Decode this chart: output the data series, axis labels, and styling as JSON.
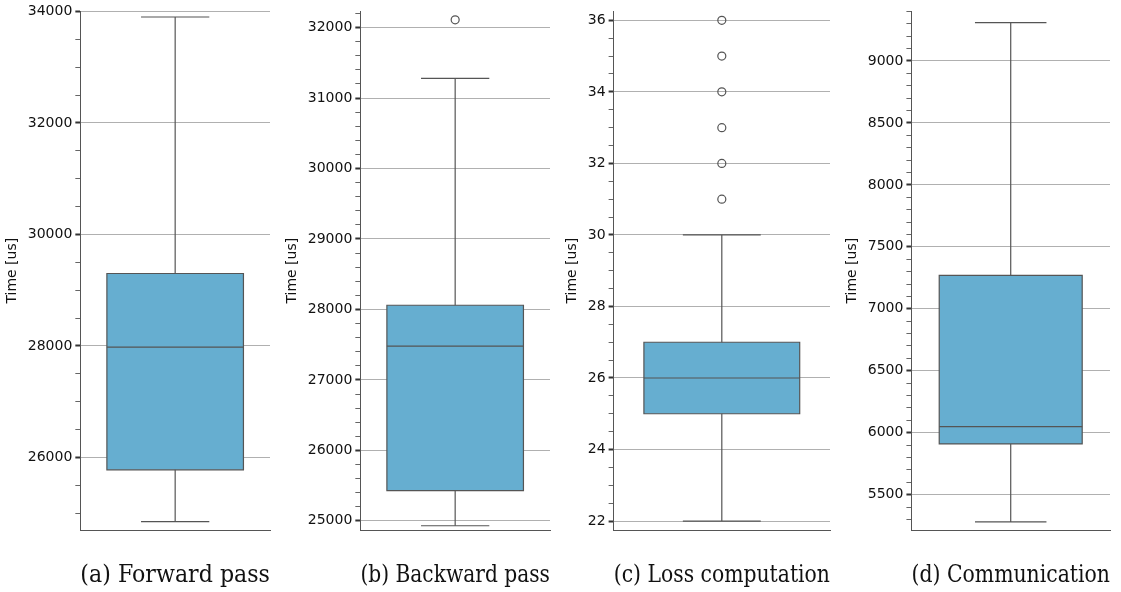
{
  "chart_data": [
    {
      "type": "box",
      "xlabel": "(a) Forward pass",
      "ylabel": "Time [us]",
      "categories": [
        null
      ],
      "color": "#66aed0",
      "grid": "y",
      "boxes": [
        {
          "low": 24850,
          "q1": 25780,
          "median": 27980,
          "q3": 29300,
          "high": 33900
        }
      ],
      "ylim": [
        24700,
        34000
      ],
      "yticks": [
        {
          "value": 25000,
          "label": null
        },
        {
          "value": 25500,
          "label": null
        },
        26000,
        {
          "value": 26500,
          "label": null
        },
        {
          "value": 27000,
          "label": null
        },
        {
          "value": 27500,
          "label": null
        },
        28000,
        {
          "value": 28500,
          "label": null
        },
        {
          "value": 29000,
          "label": null
        },
        {
          "value": 29500,
          "label": null
        },
        30000,
        {
          "value": 30500,
          "label": null
        },
        {
          "value": 31000,
          "label": null
        },
        {
          "value": 31500,
          "label": null
        },
        32000,
        {
          "value": 32500,
          "label": null
        },
        {
          "value": 33000,
          "label": null
        },
        {
          "value": 33500,
          "label": null
        },
        34000
      ]
    },
    {
      "type": "box",
      "xlabel": "(b) Backward pass",
      "ylabel": "Time [us]",
      "categories": [
        null
      ],
      "color": "#66aed0",
      "grid": "y",
      "boxes": [
        {
          "low": 24930,
          "q1": 25430,
          "median": 27480,
          "q3": 28060,
          "high": 31280,
          "outliers": [
            32110
          ]
        }
      ],
      "ylim": [
        24870,
        32230
      ],
      "yticks": [
        25000,
        {
          "value": 25200,
          "label": null
        },
        {
          "value": 25400,
          "label": null
        },
        {
          "value": 25600,
          "label": null
        },
        {
          "value": 25800,
          "label": null
        },
        26000,
        {
          "value": 26200,
          "label": null
        },
        {
          "value": 26400,
          "label": null
        },
        {
          "value": 26600,
          "label": null
        },
        {
          "value": 26800,
          "label": null
        },
        27000,
        {
          "value": 27200,
          "label": null
        },
        {
          "value": 27400,
          "label": null
        },
        {
          "value": 27600,
          "label": null
        },
        {
          "value": 27800,
          "label": null
        },
        28000,
        {
          "value": 28200,
          "label": null
        },
        {
          "value": 28400,
          "label": null
        },
        {
          "value": 28600,
          "label": null
        },
        {
          "value": 28800,
          "label": null
        },
        29000,
        {
          "value": 29200,
          "label": null
        },
        {
          "value": 29400,
          "label": null
        },
        {
          "value": 29600,
          "label": null
        },
        {
          "value": 29800,
          "label": null
        },
        30000,
        {
          "value": 30200,
          "label": null
        },
        {
          "value": 30400,
          "label": null
        },
        {
          "value": 30600,
          "label": null
        },
        {
          "value": 30800,
          "label": null
        },
        31000,
        {
          "value": 31200,
          "label": null
        },
        {
          "value": 31400,
          "label": null
        },
        {
          "value": 31600,
          "label": null
        },
        {
          "value": 31800,
          "label": null
        },
        32000,
        {
          "value": 32200,
          "label": null
        }
      ]
    },
    {
      "type": "box",
      "xlabel": "(c) Loss computation",
      "ylabel": "Time [us]",
      "categories": [
        null
      ],
      "color": "#66aed0",
      "grid": "y",
      "boxes": [
        {
          "low": 22,
          "q1": 25,
          "median": 26,
          "q3": 27,
          "high": 30,
          "outliers": [
            31,
            32,
            33,
            34,
            35,
            36
          ]
        }
      ],
      "ylim": [
        21.75,
        36.25
      ],
      "yticks": [
        22,
        {
          "value": 22.5,
          "label": null
        },
        {
          "value": 23,
          "label": null
        },
        {
          "value": 23.5,
          "label": null
        },
        24,
        {
          "value": 24.5,
          "label": null
        },
        {
          "value": 25,
          "label": null
        },
        {
          "value": 25.5,
          "label": null
        },
        26,
        {
          "value": 26.5,
          "label": null
        },
        {
          "value": 27,
          "label": null
        },
        {
          "value": 27.5,
          "label": null
        },
        28,
        {
          "value": 28.5,
          "label": null
        },
        {
          "value": 29,
          "label": null
        },
        {
          "value": 29.5,
          "label": null
        },
        30,
        {
          "value": 30.5,
          "label": null
        },
        {
          "value": 31,
          "label": null
        },
        {
          "value": 31.5,
          "label": null
        },
        32,
        {
          "value": 32.5,
          "label": null
        },
        {
          "value": 33,
          "label": null
        },
        {
          "value": 33.5,
          "label": null
        },
        34,
        {
          "value": 34.5,
          "label": null
        },
        {
          "value": 35,
          "label": null
        },
        {
          "value": 35.5,
          "label": null
        },
        36
      ]
    },
    {
      "type": "box",
      "xlabel": "(d) Communication",
      "ylabel": "Time [us]",
      "categories": [
        null
      ],
      "color": "#66aed0",
      "grid": "y",
      "boxes": [
        {
          "low": 5280,
          "q1": 5910,
          "median": 6050,
          "q3": 7270,
          "high": 9310
        }
      ],
      "ylim": [
        5215,
        9400
      ],
      "yticks": [
        {
          "value": 5300,
          "label": null
        },
        {
          "value": 5400,
          "label": null
        },
        5500,
        {
          "value": 5600,
          "label": null
        },
        {
          "value": 5700,
          "label": null
        },
        {
          "value": 5800,
          "label": null
        },
        {
          "value": 5900,
          "label": null
        },
        6000,
        {
          "value": 6100,
          "label": null
        },
        {
          "value": 6200,
          "label": null
        },
        {
          "value": 6300,
          "label": null
        },
        {
          "value": 6400,
          "label": null
        },
        6500,
        {
          "value": 6600,
          "label": null
        },
        {
          "value": 6700,
          "label": null
        },
        {
          "value": 6800,
          "label": null
        },
        {
          "value": 6900,
          "label": null
        },
        7000,
        {
          "value": 7100,
          "label": null
        },
        {
          "value": 7200,
          "label": null
        },
        {
          "value": 7300,
          "label": null
        },
        {
          "value": 7400,
          "label": null
        },
        7500,
        {
          "value": 7600,
          "label": null
        },
        {
          "value": 7700,
          "label": null
        },
        {
          "value": 7800,
          "label": null
        },
        {
          "value": 7900,
          "label": null
        },
        8000,
        {
          "value": 8100,
          "label": null
        },
        {
          "value": 8200,
          "label": null
        },
        {
          "value": 8300,
          "label": null
        },
        {
          "value": 8400,
          "label": null
        },
        8500,
        {
          "value": 8600,
          "label": null
        },
        {
          "value": 8700,
          "label": null
        },
        {
          "value": 8800,
          "label": null
        },
        {
          "value": 8900,
          "label": null
        },
        9000,
        {
          "value": 9100,
          "label": null
        },
        {
          "value": 9200,
          "label": null
        },
        {
          "value": 9300,
          "label": null
        },
        {
          "value": 9400,
          "label": null
        }
      ]
    }
  ]
}
